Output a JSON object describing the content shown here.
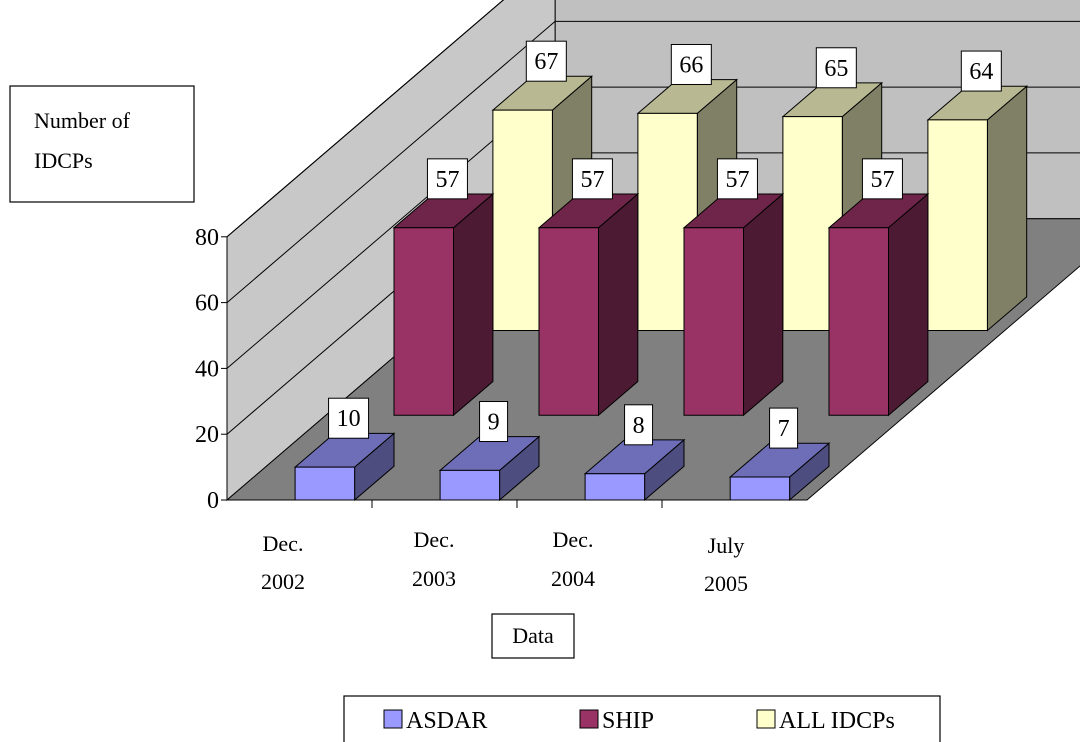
{
  "chart_data": {
    "type": "bar",
    "title": "",
    "ylabel": "Number of IDCPs",
    "xlabel": "Data",
    "ylim": [
      0,
      80
    ],
    "yticks": [
      0,
      20,
      40,
      60,
      80
    ],
    "categories": [
      "Dec. 2002",
      "Dec. 2003",
      "Dec. 2004",
      "July 2005"
    ],
    "category_lines": [
      [
        "Dec.",
        "2002"
      ],
      [
        "Dec.",
        "2003"
      ],
      [
        "Dec.",
        "2004"
      ],
      [
        "July",
        "2005"
      ]
    ],
    "series": [
      {
        "name": "ASDAR",
        "values": [
          10,
          9,
          8,
          7
        ]
      },
      {
        "name": "SHIP",
        "values": [
          57,
          57,
          57,
          57
        ]
      },
      {
        "name": "ALL IDCPs",
        "values": [
          67,
          66,
          65,
          64
        ]
      }
    ],
    "three_d": true,
    "gridlines": true,
    "legend_position": "bottom"
  },
  "colors": {
    "ASDAR": "#9999ff",
    "SHIP": "#993366",
    "ALL IDCPs": "#ffffcc",
    "back_wall": "#c0c0c0",
    "floor": "#808080"
  }
}
